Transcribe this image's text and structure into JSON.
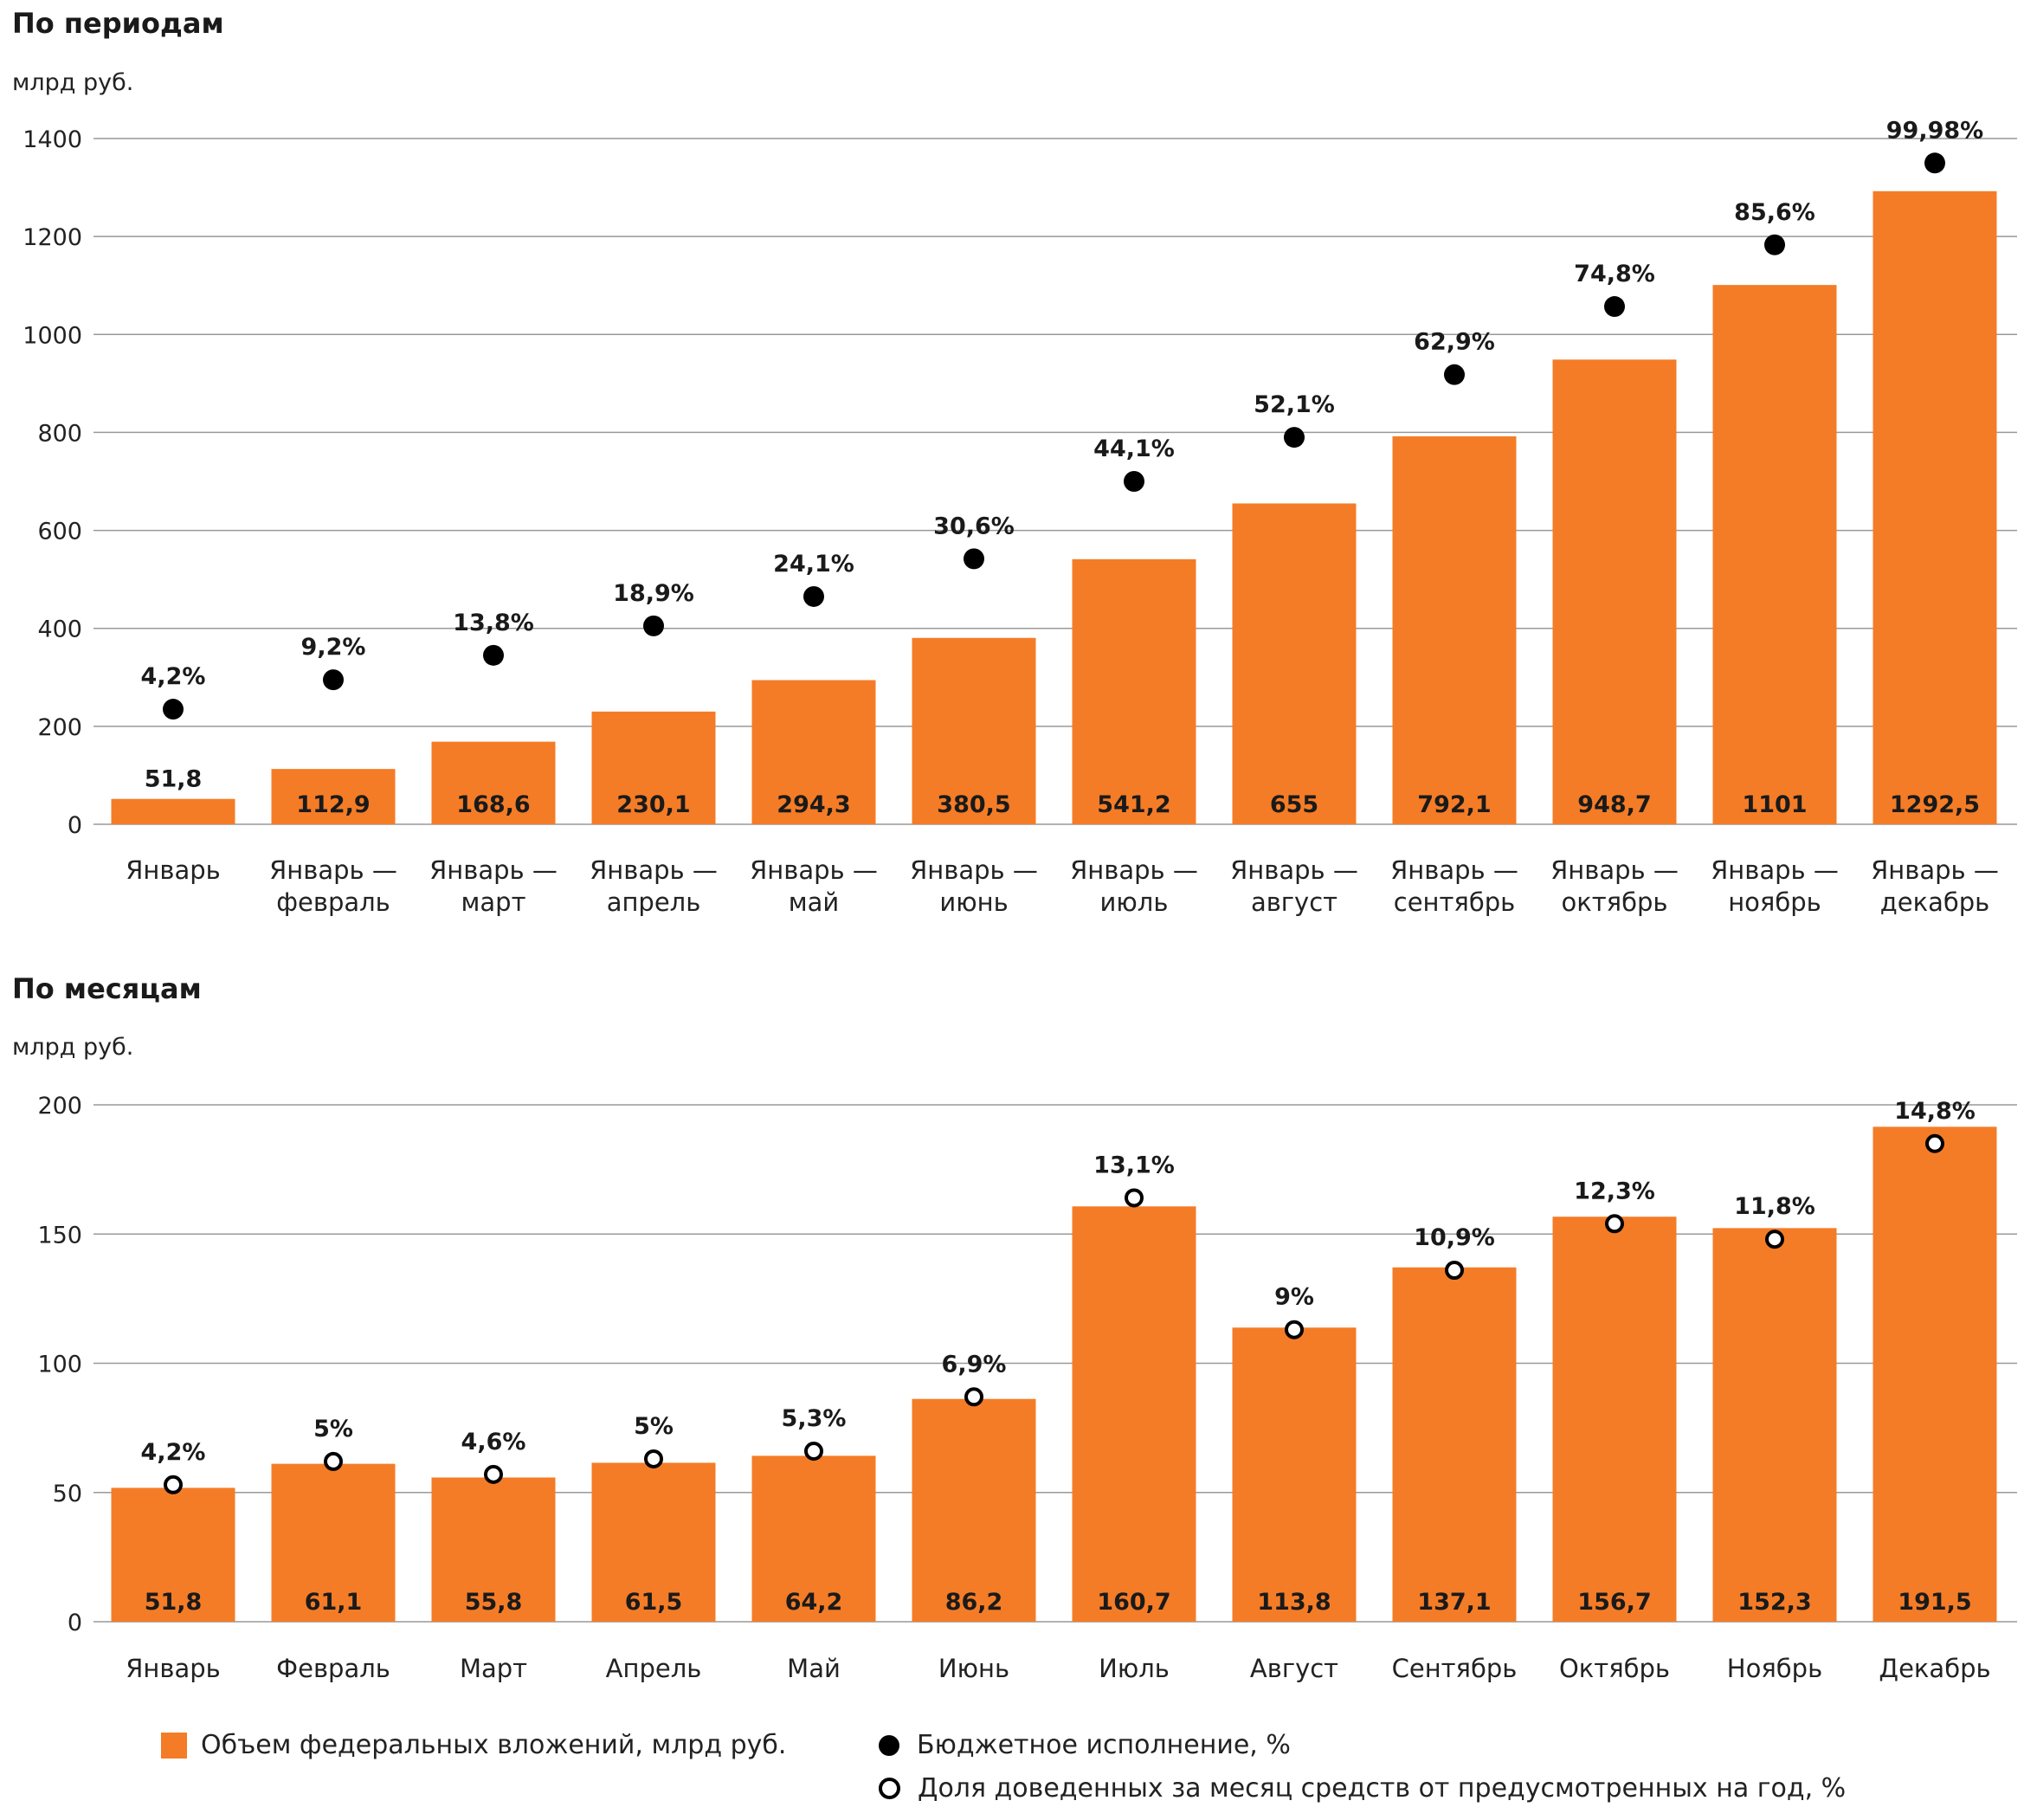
{
  "colors": {
    "bar": "#f47c27",
    "grid": "#999999",
    "dot": "#000000",
    "text": "#1a1a1a"
  },
  "legend": {
    "bar_label": "Объем федеральных вложений, млрд руб.",
    "filled_label": "Бюджетное исполнение, %",
    "hollow_label": "Доля доведенных за месяц средств от предусмотренных на год, %"
  },
  "chart_data": [
    {
      "type": "bar",
      "title": "По периодам",
      "ylabel": "млрд руб.",
      "ylim": [
        0,
        1400
      ],
      "yticks": [
        0,
        200,
        400,
        600,
        800,
        1000,
        1200,
        1400
      ],
      "grid": true,
      "categories": [
        [
          "Январь",
          ""
        ],
        [
          "Январь —",
          "февраль"
        ],
        [
          "Январь —",
          "март"
        ],
        [
          "Январь —",
          "апрель"
        ],
        [
          "Январь —",
          "май"
        ],
        [
          "Январь —",
          "июнь"
        ],
        [
          "Январь —",
          "июль"
        ],
        [
          "Январь —",
          "август"
        ],
        [
          "Январь —",
          "сентябрь"
        ],
        [
          "Январь —",
          "октябрь"
        ],
        [
          "Январь —",
          "ноябрь"
        ],
        [
          "Январь —",
          "декабрь"
        ]
      ],
      "values": [
        51.8,
        112.9,
        168.6,
        230.1,
        294.3,
        380.5,
        541.2,
        655,
        792.1,
        948.7,
        1101,
        1292.5
      ],
      "value_labels": [
        "51,8",
        "112,9",
        "168,6",
        "230,1",
        "294,3",
        "380,5",
        "541,2",
        "655",
        "792,1",
        "948,7",
        "1101",
        "1292,5"
      ],
      "marker_style": "filled",
      "marker_values": [
        235,
        295,
        345,
        405,
        465,
        542,
        700,
        790,
        918,
        1057,
        1183,
        1350
      ],
      "marker_labels": [
        "4,2%",
        "9,2%",
        "13,8%",
        "18,9%",
        "24,1%",
        "30,6%",
        "44,1%",
        "52,1%",
        "62,9%",
        "74,8%",
        "85,6%",
        "99,98%"
      ]
    },
    {
      "type": "bar",
      "title": "По месяцам",
      "ylabel": "млрд руб.",
      "ylim": [
        0,
        200
      ],
      "yticks": [
        0,
        50,
        100,
        150,
        200
      ],
      "grid": true,
      "categories": [
        [
          "Январь",
          ""
        ],
        [
          "Февраль",
          ""
        ],
        [
          "Март",
          ""
        ],
        [
          "Апрель",
          ""
        ],
        [
          "Май",
          ""
        ],
        [
          "Июнь",
          ""
        ],
        [
          "Июль",
          ""
        ],
        [
          "Август",
          ""
        ],
        [
          "Сентябрь",
          ""
        ],
        [
          "Октябрь",
          ""
        ],
        [
          "Ноябрь",
          ""
        ],
        [
          "Декабрь",
          ""
        ]
      ],
      "values": [
        51.8,
        61.1,
        55.8,
        61.5,
        64.2,
        86.2,
        160.7,
        113.8,
        137.1,
        156.7,
        152.3,
        191.5
      ],
      "value_labels": [
        "51,8",
        "61,1",
        "55,8",
        "61,5",
        "64,2",
        "86,2",
        "160,7",
        "113,8",
        "137,1",
        "156,7",
        "152,3",
        "191,5"
      ],
      "marker_style": "hollow",
      "marker_values": [
        53,
        62,
        57,
        63,
        66,
        87,
        164,
        113,
        136,
        154,
        148,
        185
      ],
      "marker_labels": [
        "4,2%",
        "5%",
        "4,6%",
        "5%",
        "5,3%",
        "6,9%",
        "13,1%",
        "9%",
        "10,9%",
        "12,3%",
        "11,8%",
        "14,8%"
      ]
    }
  ]
}
